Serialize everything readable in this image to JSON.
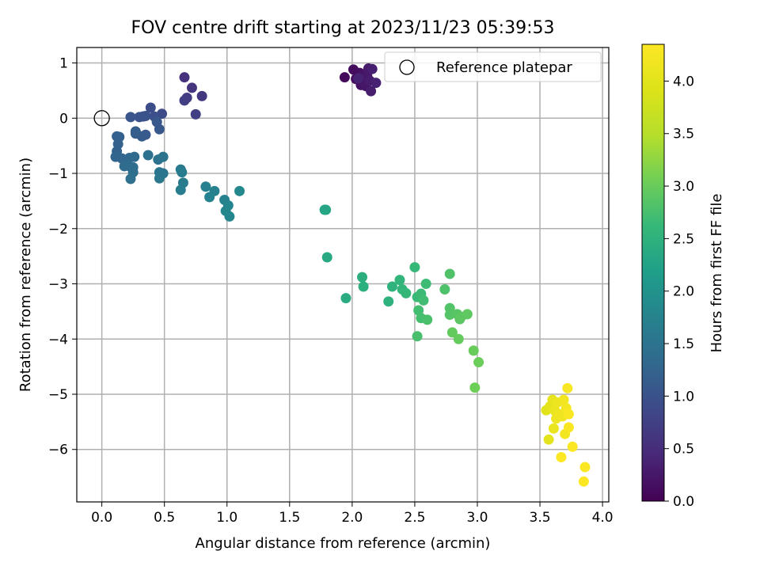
{
  "chart_data": {
    "type": "scatter",
    "title": "FOV centre drift starting at 2023/11/23 05:39:53",
    "xlabel": "Angular distance from reference (arcmin)",
    "ylabel": "Rotation from reference (arcmin)",
    "xlim": [
      -0.2,
      4.05
    ],
    "ylim": [
      -6.95,
      1.28
    ],
    "xticks": [
      0.0,
      0.5,
      1.0,
      1.5,
      2.0,
      2.5,
      3.0,
      3.5,
      4.0
    ],
    "xtick_labels": [
      "0.0",
      "0.5",
      "1.0",
      "1.5",
      "2.0",
      "2.5",
      "3.0",
      "3.5",
      "4.0"
    ],
    "yticks": [
      1,
      0,
      -1,
      -2,
      -3,
      -4,
      -5,
      -6
    ],
    "ytick_labels": [
      "1",
      "0",
      "−1",
      "−2",
      "−3",
      "−4",
      "−5",
      "−6"
    ],
    "grid": true,
    "legend": {
      "position": "top-right",
      "entries": [
        "Reference platepar"
      ]
    },
    "reference_point": {
      "x": 0.0,
      "y": 0.0,
      "label": "Reference platepar"
    },
    "colorbar": {
      "label": "Hours from first FF file",
      "range": [
        0.0,
        4.35
      ],
      "colormap": "viridis",
      "ticks": [
        0.0,
        0.5,
        1.0,
        1.5,
        2.0,
        2.5,
        3.0,
        3.5,
        4.0
      ],
      "tick_labels": [
        "0.0",
        "0.5",
        "1.0",
        "1.5",
        "2.0",
        "2.5",
        "3.0",
        "3.5",
        "4.0"
      ]
    },
    "points": [
      [
        1.94,
        0.74,
        0.1
      ],
      [
        2.01,
        0.88,
        0.12
      ],
      [
        2.03,
        0.71,
        0.14
      ],
      [
        2.06,
        0.82,
        0.16
      ],
      [
        2.07,
        0.6,
        0.18
      ],
      [
        2.08,
        0.65,
        0.2
      ],
      [
        2.1,
        0.8,
        0.22
      ],
      [
        2.11,
        0.58,
        0.24
      ],
      [
        2.12,
        0.76,
        0.26
      ],
      [
        2.13,
        0.9,
        0.28
      ],
      [
        2.14,
        0.68,
        0.3
      ],
      [
        2.15,
        0.49,
        0.32
      ],
      [
        2.16,
        0.89,
        0.34
      ],
      [
        2.19,
        0.64,
        0.36
      ],
      [
        2.05,
        0.72,
        0.38
      ],
      [
        0.66,
        0.74,
        0.55
      ],
      [
        0.72,
        0.55,
        0.6
      ],
      [
        0.8,
        0.4,
        0.65
      ],
      [
        0.68,
        0.37,
        0.7
      ],
      [
        0.66,
        0.32,
        0.72
      ],
      [
        0.75,
        0.07,
        0.75
      ],
      [
        0.48,
        0.08,
        0.9
      ],
      [
        0.39,
        0.19,
        0.92
      ],
      [
        0.42,
        0.03,
        0.95
      ],
      [
        0.35,
        0.04,
        0.98
      ],
      [
        0.33,
        0.03,
        1.0
      ],
      [
        0.3,
        0.02,
        1.02
      ],
      [
        0.23,
        0.02,
        1.04
      ],
      [
        0.44,
        -0.07,
        1.06
      ],
      [
        0.46,
        -0.2,
        1.08
      ],
      [
        0.35,
        -0.3,
        1.1
      ],
      [
        0.32,
        -0.33,
        1.12
      ],
      [
        0.27,
        -0.24,
        1.14
      ],
      [
        0.27,
        -0.28,
        1.16
      ],
      [
        0.14,
        -0.34,
        1.18
      ],
      [
        0.12,
        -0.33,
        1.2
      ],
      [
        0.13,
        -0.47,
        1.22
      ],
      [
        0.12,
        -0.6,
        1.24
      ],
      [
        0.11,
        -0.7,
        1.26
      ],
      [
        0.16,
        -0.73,
        1.28
      ],
      [
        0.2,
        -0.8,
        1.3
      ],
      [
        0.22,
        -0.72,
        1.32
      ],
      [
        0.26,
        -0.7,
        1.34
      ],
      [
        0.22,
        -0.87,
        1.36
      ],
      [
        0.18,
        -0.87,
        1.38
      ],
      [
        0.25,
        -0.89,
        1.4
      ],
      [
        0.25,
        -0.98,
        1.42
      ],
      [
        0.23,
        -1.1,
        1.44
      ],
      [
        0.37,
        -0.67,
        1.46
      ],
      [
        0.45,
        -0.75,
        1.48
      ],
      [
        0.49,
        -0.7,
        1.5
      ],
      [
        0.46,
        -0.98,
        1.52
      ],
      [
        0.49,
        -1.0,
        1.54
      ],
      [
        0.46,
        -1.09,
        1.56
      ],
      [
        0.63,
        -0.93,
        1.6
      ],
      [
        0.64,
        -0.98,
        1.62
      ],
      [
        0.65,
        -1.17,
        1.64
      ],
      [
        0.63,
        -1.3,
        1.66
      ],
      [
        0.83,
        -1.24,
        1.7
      ],
      [
        0.9,
        -1.32,
        1.72
      ],
      [
        0.86,
        -1.43,
        1.74
      ],
      [
        0.98,
        -1.48,
        1.76
      ],
      [
        1.01,
        -1.58,
        1.78
      ],
      [
        0.99,
        -1.68,
        1.8
      ],
      [
        1.02,
        -1.78,
        1.82
      ],
      [
        1.1,
        -1.32,
        1.84
      ],
      [
        1.78,
        -1.66,
        2.3
      ],
      [
        1.79,
        -1.66,
        2.32
      ],
      [
        1.8,
        -2.52,
        2.35
      ],
      [
        1.95,
        -3.26,
        2.4
      ],
      [
        2.08,
        -2.88,
        2.45
      ],
      [
        2.09,
        -3.05,
        2.48
      ],
      [
        2.29,
        -3.32,
        2.5
      ],
      [
        2.32,
        -3.05,
        2.52
      ],
      [
        2.38,
        -2.93,
        2.55
      ],
      [
        2.4,
        -3.1,
        2.57
      ],
      [
        2.43,
        -3.17,
        2.6
      ],
      [
        2.5,
        -2.7,
        2.62
      ],
      [
        2.52,
        -3.24,
        2.64
      ],
      [
        2.55,
        -3.18,
        2.66
      ],
      [
        2.59,
        -3.0,
        2.68
      ],
      [
        2.57,
        -3.3,
        2.7
      ],
      [
        2.53,
        -3.48,
        2.72
      ],
      [
        2.55,
        -3.62,
        2.74
      ],
      [
        2.52,
        -3.95,
        2.76
      ],
      [
        2.6,
        -3.65,
        2.78
      ],
      [
        2.74,
        -3.1,
        2.8
      ],
      [
        2.78,
        -2.82,
        2.82
      ],
      [
        2.78,
        -3.44,
        2.84
      ],
      [
        2.78,
        -3.56,
        2.86
      ],
      [
        2.84,
        -3.55,
        2.88
      ],
      [
        2.86,
        -3.64,
        2.9
      ],
      [
        2.87,
        -3.6,
        2.92
      ],
      [
        2.92,
        -3.55,
        2.94
      ],
      [
        2.8,
        -3.88,
        2.96
      ],
      [
        2.85,
        -4.0,
        2.98
      ],
      [
        2.97,
        -4.21,
        3.0
      ],
      [
        3.01,
        -4.42,
        3.02
      ],
      [
        2.98,
        -4.88,
        3.04
      ],
      [
        3.55,
        -5.29,
        4.0
      ],
      [
        3.57,
        -5.82,
        4.02
      ],
      [
        3.58,
        -5.22,
        4.04
      ],
      [
        3.6,
        -5.1,
        4.06
      ],
      [
        3.61,
        -5.62,
        4.08
      ],
      [
        3.62,
        -5.3,
        4.1
      ],
      [
        3.63,
        -5.44,
        4.12
      ],
      [
        3.64,
        -5.15,
        4.14
      ],
      [
        3.66,
        -5.36,
        4.16
      ],
      [
        3.68,
        -5.4,
        4.18
      ],
      [
        3.69,
        -5.1,
        4.2
      ],
      [
        3.7,
        -5.72,
        4.22
      ],
      [
        3.71,
        -5.25,
        4.24
      ],
      [
        3.72,
        -4.89,
        4.26
      ],
      [
        3.73,
        -5.6,
        4.28
      ],
      [
        3.73,
        -5.36,
        4.3
      ],
      [
        3.76,
        -5.95,
        4.32
      ],
      [
        3.67,
        -6.14,
        4.33
      ],
      [
        3.86,
        -6.32,
        4.34
      ],
      [
        3.85,
        -6.58,
        4.35
      ]
    ]
  }
}
